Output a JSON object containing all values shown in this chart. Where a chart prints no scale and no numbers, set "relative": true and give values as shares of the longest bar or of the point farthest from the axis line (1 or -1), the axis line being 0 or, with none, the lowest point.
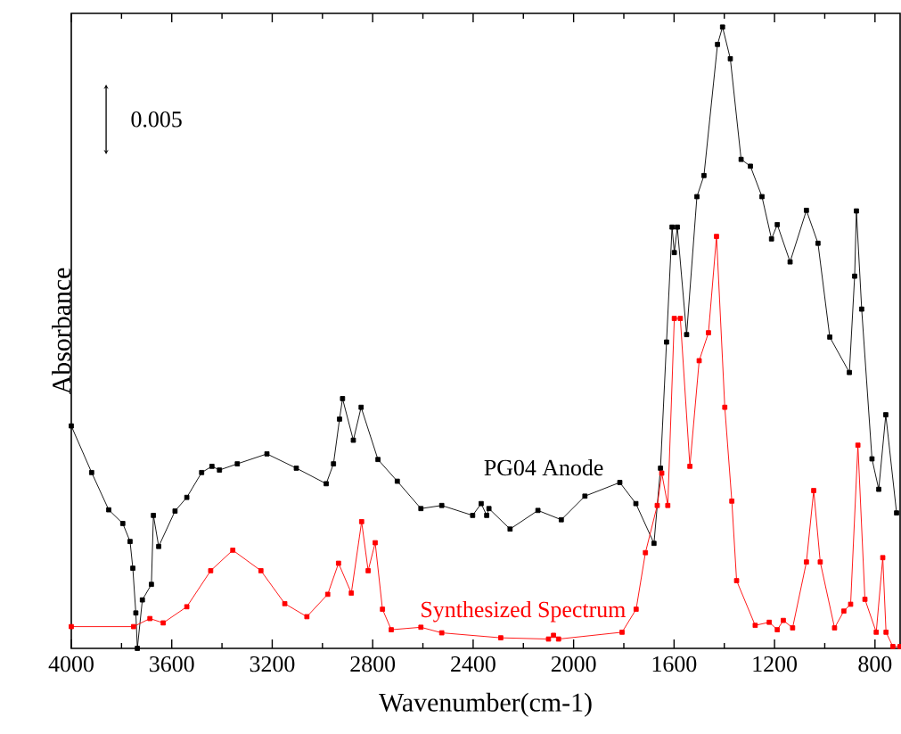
{
  "chart_data": {
    "type": "line",
    "xlabel": "Wavenumber(cm-1)",
    "ylabel": "Absorbance",
    "relative": true,
    "marker": "square",
    "xlim": [
      4000,
      700
    ],
    "xticks": [
      4000,
      3600,
      3200,
      2800,
      2400,
      2000,
      1600,
      1200,
      800
    ],
    "annotations": [
      "0.005"
    ],
    "series": [
      {
        "name": "PG04 Anode",
        "color": "#000000",
        "x": [
          4000,
          3919,
          3851,
          3795,
          3766,
          3755,
          3743,
          3737,
          3717,
          3681,
          3673,
          3652,
          3587,
          3540,
          3481,
          3440,
          3410,
          3339,
          3221,
          3104,
          2985,
          2956,
          2932,
          2920,
          2877,
          2846,
          2779,
          2702,
          2608,
          2525,
          2402,
          2368,
          2346,
          2337,
          2253,
          2142,
          2049,
          1955,
          1816,
          1752,
          1680,
          1654,
          1630,
          1608,
          1599,
          1587,
          1550,
          1509,
          1481,
          1427,
          1407,
          1376,
          1333,
          1296,
          1250,
          1212,
          1189,
          1138,
          1073,
          1027,
          980,
          902,
          881,
          874,
          853,
          812,
          785,
          757,
          714
        ],
        "values": [
          0.358,
          0.283,
          0.223,
          0.201,
          0.172,
          0.129,
          0.057,
          0.0,
          0.078,
          0.103,
          0.214,
          0.164,
          0.221,
          0.243,
          0.283,
          0.293,
          0.287,
          0.297,
          0.313,
          0.29,
          0.265,
          0.297,
          0.369,
          0.402,
          0.335,
          0.388,
          0.304,
          0.269,
          0.225,
          0.23,
          0.214,
          0.233,
          0.214,
          0.225,
          0.192,
          0.222,
          0.207,
          0.245,
          0.267,
          0.233,
          0.169,
          0.29,
          0.493,
          0.678,
          0.637,
          0.678,
          0.505,
          0.727,
          0.761,
          0.972,
          1.0,
          0.949,
          0.787,
          0.776,
          0.727,
          0.659,
          0.682,
          0.622,
          0.705,
          0.652,
          0.501,
          0.444,
          0.599,
          0.704,
          0.546,
          0.305,
          0.256,
          0.376,
          0.218
        ]
      },
      {
        "name": "Synthesized Spectrum",
        "color": "#ff0000",
        "x": [
          4000,
          3752,
          3687,
          3634,
          3540,
          3445,
          3357,
          3245,
          3150,
          3062,
          2979,
          2936,
          2885,
          2844,
          2818,
          2790,
          2761,
          2726,
          2608,
          2525,
          2290,
          2100,
          2080,
          2060,
          1807,
          1751,
          1714,
          1667,
          1649,
          1625,
          1599,
          1575,
          1537,
          1500,
          1463,
          1431,
          1398,
          1370,
          1351,
          1277,
          1221,
          1189,
          1165,
          1128,
          1073,
          1044,
          1018,
          961,
          924,
          897,
          868,
          840,
          795,
          769,
          756,
          729,
          700
        ],
        "values": [
          0.035,
          0.035,
          0.048,
          0.041,
          0.067,
          0.125,
          0.158,
          0.125,
          0.072,
          0.051,
          0.087,
          0.137,
          0.089,
          0.204,
          0.125,
          0.17,
          0.063,
          0.03,
          0.034,
          0.025,
          0.017,
          0.015,
          0.021,
          0.015,
          0.026,
          0.063,
          0.154,
          0.23,
          0.282,
          0.23,
          0.531,
          0.531,
          0.293,
          0.463,
          0.508,
          0.663,
          0.388,
          0.237,
          0.109,
          0.037,
          0.042,
          0.03,
          0.045,
          0.033,
          0.139,
          0.254,
          0.139,
          0.033,
          0.06,
          0.071,
          0.327,
          0.079,
          0.026,
          0.146,
          0.026,
          0.003,
          0.003
        ]
      }
    ]
  }
}
